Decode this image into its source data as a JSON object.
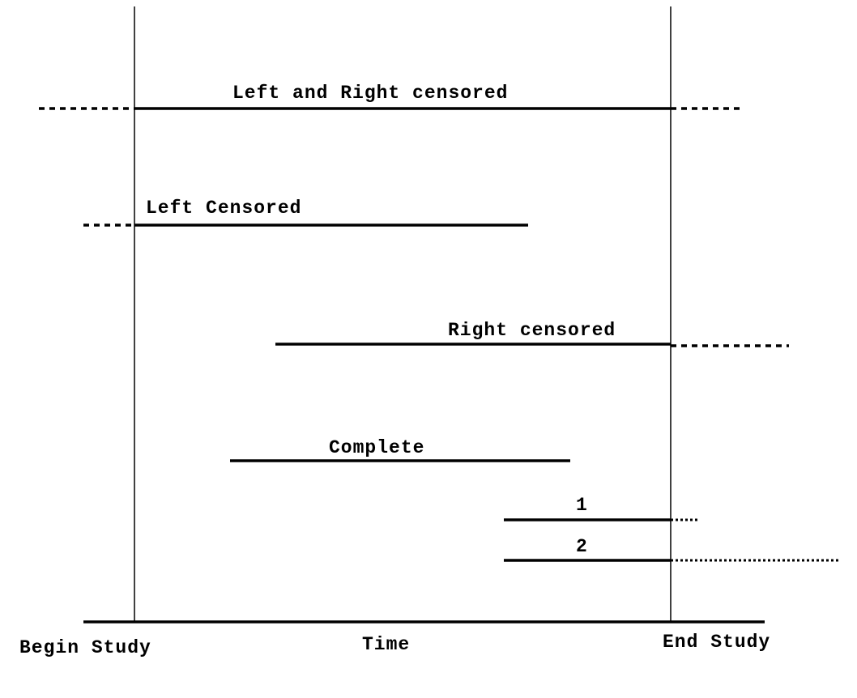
{
  "labels": {
    "left_right": "Left and Right censored",
    "left": "Left Censored",
    "right": "Right censored",
    "complete": "Complete",
    "one": "1",
    "two": "2",
    "begin": "Begin Study",
    "time": "Time",
    "end": "End Study"
  },
  "colors": {
    "line": "#000000",
    "background": "#ffffff"
  }
}
